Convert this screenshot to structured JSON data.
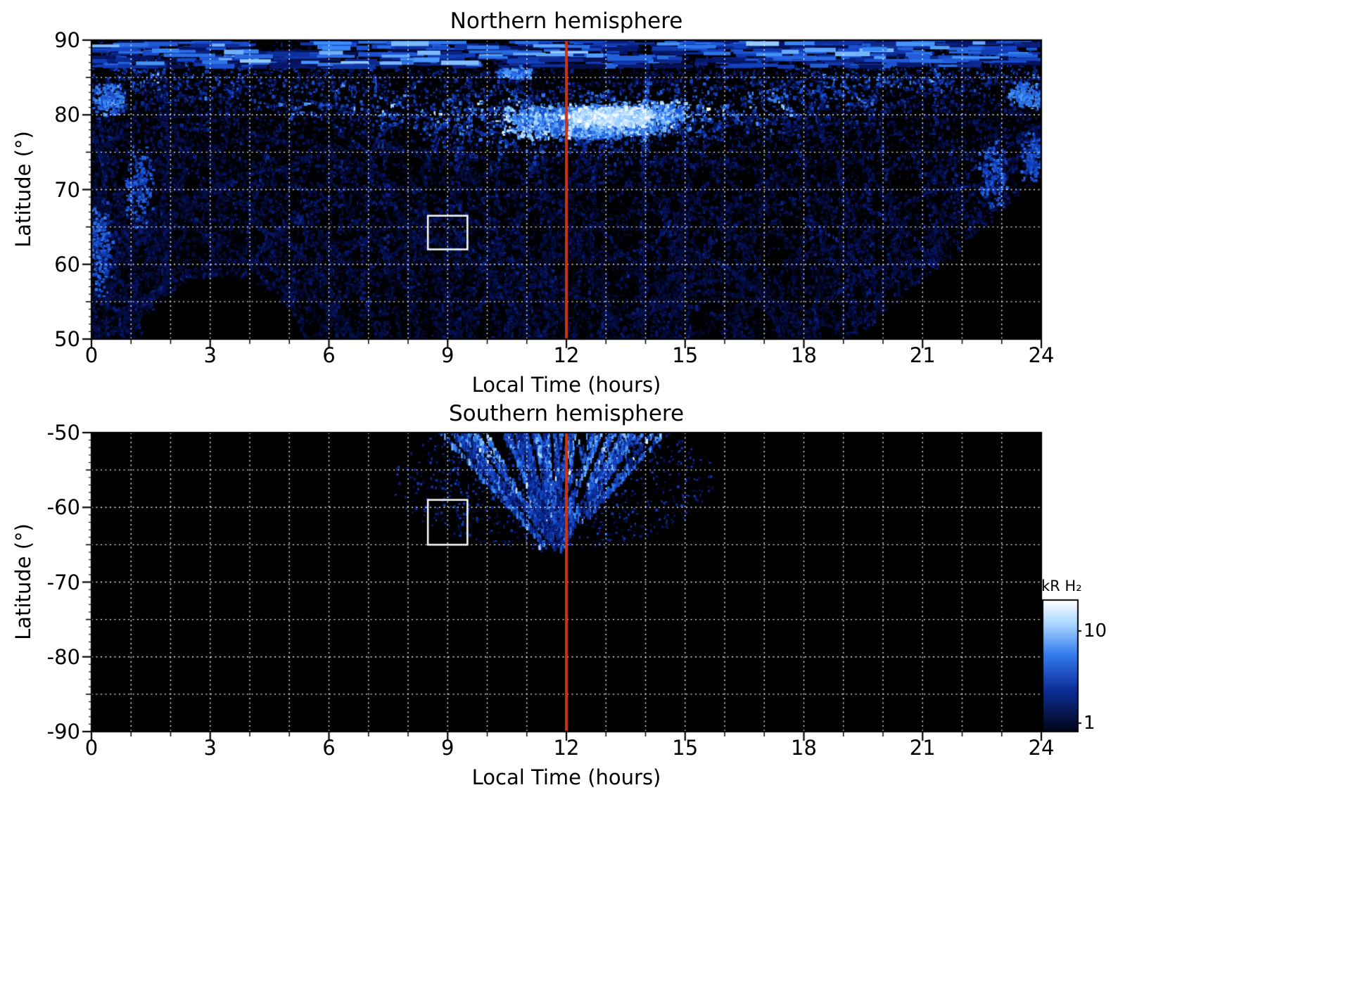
{
  "figure": {
    "background_color": "#ffffff",
    "grid_color": "#ffffff",
    "meridian_line_color": "#cc3311",
    "selection_box_color": "#ffffff",
    "colorbar": {
      "label": "kR H₂",
      "ticks": [
        "10",
        "1"
      ],
      "scale": "log",
      "orientation": "vertical",
      "colormap": "black-blue-white"
    }
  },
  "chart_data": [
    {
      "type": "heatmap",
      "title": "Northern hemisphere",
      "xlabel": "Local Time (hours)",
      "ylabel": "Latitude (°)",
      "quantity": "H₂ emission brightness (kR)",
      "xlim": [
        0,
        24
      ],
      "ylim": [
        50,
        90
      ],
      "xticks": [
        0,
        3,
        6,
        9,
        12,
        15,
        18,
        21,
        24
      ],
      "yticks": [
        90,
        80,
        70,
        60,
        50
      ],
      "grid": {
        "x_step_hours": 1,
        "y_step_degrees": 5,
        "style": "dotted white"
      },
      "annotations": [
        {
          "type": "vline",
          "x": 12,
          "color": "#cc3311",
          "meaning": "noon meridian"
        },
        {
          "type": "rect",
          "x0": 8.5,
          "x1": 9.5,
          "y0": 62,
          "y1": 66.5,
          "color": "#ffffff",
          "meaning": "selection box"
        }
      ],
      "features": [
        "Speckled blue emission swaths cover most local times between 50° and 90° latitude",
        "Bright auroral band near 76–85° latitude, brightest (white, >10 kR) around 12–14 h local time at ~80°",
        "Arc-shaped orbit-swath streaks converge toward the pole from dawn and dusk sectors",
        "Horizontally striped emission band above ~86° latitude",
        "No coverage (black) around 1.5–5 h below ~58° latitude and after ~19.5 h below ~70° latitude"
      ]
    },
    {
      "type": "heatmap",
      "title": "Southern hemisphere",
      "xlabel": "Local Time (hours)",
      "ylabel": "Latitude (°)",
      "quantity": "H₂ emission brightness (kR)",
      "xlim": [
        0,
        24
      ],
      "ylim": [
        -90,
        -50
      ],
      "xticks": [
        0,
        3,
        6,
        9,
        12,
        15,
        18,
        21,
        24
      ],
      "yticks": [
        -50,
        -60,
        -70,
        -80,
        -90
      ],
      "grid": {
        "x_step_hours": 1,
        "y_step_degrees": 5,
        "style": "dotted white"
      },
      "annotations": [
        {
          "type": "vline",
          "x": 12,
          "color": "#cc3311",
          "meaning": "noon meridian"
        },
        {
          "type": "rect",
          "x0": 8.5,
          "x1": 9.5,
          "y0": -65,
          "y1": -59,
          "color": "#ffffff",
          "meaning": "selection box"
        }
      ],
      "features": [
        "Coverage limited to a fan of radial streaks between ~8 and ~15.5 h local time and −50° to −66° latitude, converging toward ~12 h, −66°",
        "All other local times and latitudes have no data (black)"
      ]
    }
  ]
}
